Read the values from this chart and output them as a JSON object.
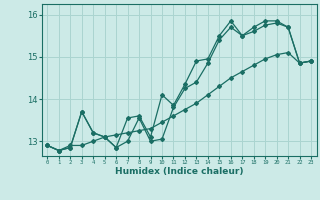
{
  "xlabel": "Humidex (Indice chaleur)",
  "background_color": "#cceae7",
  "grid_color": "#aad4d0",
  "line_color": "#1a6e64",
  "xlim": [
    -0.5,
    23.5
  ],
  "ylim": [
    12.65,
    16.25
  ],
  "yticks": [
    13,
    14,
    15,
    16
  ],
  "xticks": [
    0,
    1,
    2,
    3,
    4,
    5,
    6,
    7,
    8,
    9,
    10,
    11,
    12,
    13,
    14,
    15,
    16,
    17,
    18,
    19,
    20,
    21,
    22,
    23
  ],
  "line1_x": [
    0,
    1,
    2,
    3,
    4,
    5,
    6,
    7,
    8,
    9,
    10,
    11,
    12,
    13,
    14,
    15,
    16,
    17,
    18,
    19,
    20,
    21,
    22,
    23
  ],
  "line1_y": [
    12.9,
    12.78,
    12.85,
    13.7,
    13.2,
    13.1,
    12.85,
    13.0,
    13.55,
    13.0,
    13.05,
    13.8,
    14.25,
    14.4,
    14.85,
    15.4,
    15.7,
    15.5,
    15.6,
    15.75,
    15.8,
    15.7,
    14.85,
    14.9
  ],
  "line2_x": [
    0,
    1,
    2,
    3,
    4,
    5,
    6,
    7,
    8,
    9,
    10,
    11,
    12,
    13,
    14,
    15,
    16,
    17,
    18,
    19,
    20,
    21,
    22,
    23
  ],
  "line2_y": [
    12.9,
    12.78,
    12.85,
    13.7,
    13.2,
    13.1,
    12.85,
    13.55,
    13.6,
    13.1,
    14.1,
    13.85,
    14.35,
    14.9,
    14.95,
    15.5,
    15.85,
    15.5,
    15.7,
    15.85,
    15.85,
    15.7,
    14.85,
    14.9
  ],
  "line3_x": [
    0,
    1,
    2,
    3,
    4,
    5,
    6,
    7,
    8,
    9,
    10,
    11,
    12,
    13,
    14,
    15,
    16,
    17,
    18,
    19,
    20,
    21,
    22,
    23
  ],
  "line3_y": [
    12.9,
    12.78,
    12.9,
    12.9,
    13.0,
    13.1,
    13.15,
    13.2,
    13.25,
    13.3,
    13.45,
    13.6,
    13.75,
    13.9,
    14.1,
    14.3,
    14.5,
    14.65,
    14.8,
    14.95,
    15.05,
    15.1,
    14.85,
    14.9
  ]
}
